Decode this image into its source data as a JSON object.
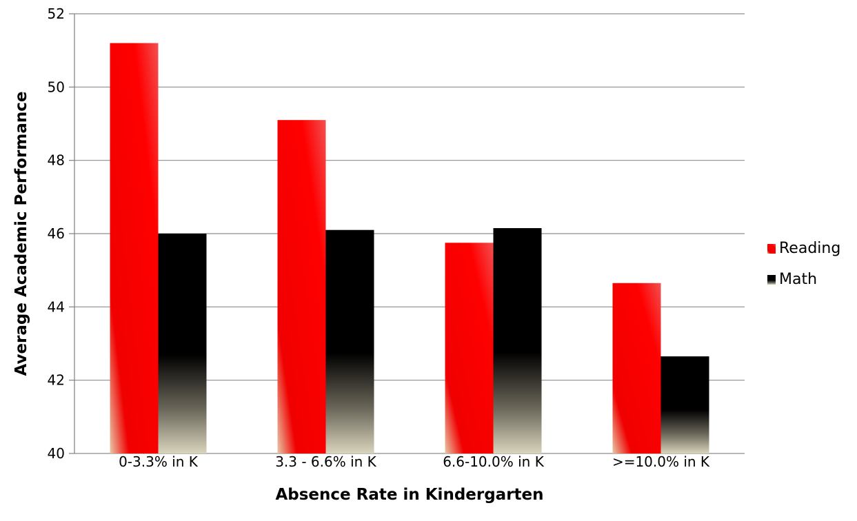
{
  "chart_data": {
    "type": "bar",
    "title": "",
    "xlabel": "Absence Rate in Kindergarten",
    "ylabel": "Average Academic Performance",
    "categories": [
      "0-3.3% in K",
      "3.3 - 6.6% in K",
      "6.6-10.0% in K",
      ">=10.0% in K"
    ],
    "series": [
      {
        "name": "Reading",
        "values": [
          51.2,
          49.1,
          45.75,
          44.65
        ],
        "color": "#ff0000"
      },
      {
        "name": "Math",
        "values": [
          46.0,
          46.1,
          46.15,
          42.65
        ],
        "color": "#000000"
      }
    ],
    "ylim": [
      40,
      52
    ],
    "yticks": [
      "40",
      "42",
      "44",
      "46",
      "48",
      "50",
      "52"
    ],
    "grid": true,
    "legend_position": "right"
  }
}
